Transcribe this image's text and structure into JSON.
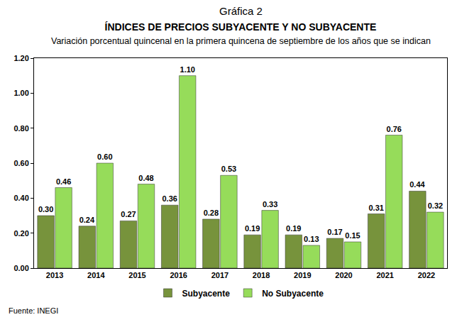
{
  "chart_data": {
    "type": "bar",
    "title": "ÍNDICES DE PRECIOS SUBYACENTE Y NO SUBYACENTE",
    "subtitle": "Variación porcentual quincenal en la primera quincena de septiembre de los años que se indican",
    "annotations": [
      "Gráfica 2",
      "Fuente: INEGI"
    ],
    "categories": [
      "2013",
      "2014",
      "2015",
      "2016",
      "2017",
      "2018",
      "2019",
      "2020",
      "2021",
      "2022"
    ],
    "series": [
      {
        "name": "Subyacente",
        "color": "#77933c",
        "values": [
          0.3,
          0.24,
          0.27,
          0.36,
          0.28,
          0.19,
          0.19,
          0.17,
          0.31,
          0.44
        ],
        "value_labels": [
          "0.30",
          "0.24",
          "0.27",
          "0.36",
          "0.28",
          "0.19",
          "0.19",
          "0.17",
          "0.31",
          "0.44"
        ]
      },
      {
        "name": "No Subyacente",
        "color": "#96dc5a",
        "values": [
          0.46,
          0.6,
          0.48,
          1.1,
          0.53,
          0.33,
          0.13,
          0.15,
          0.76,
          0.32
        ],
        "value_labels": [
          "0.46",
          "0.60",
          "0.48",
          "1.10",
          "0.53",
          "0.33",
          "0.13",
          "0.15",
          "0.76",
          "0.32"
        ]
      }
    ],
    "ylim": [
      0,
      1.2
    ],
    "yticks": [
      {
        "value": 0,
        "label": "0.00"
      },
      {
        "value": 0.2,
        "label": "0.20"
      },
      {
        "value": 0.4,
        "label": "0.40"
      },
      {
        "value": 0.6,
        "label": "0.60"
      },
      {
        "value": 0.8,
        "label": "0.80"
      },
      {
        "value": 1.0,
        "label": "1.00"
      },
      {
        "value": 1.2,
        "label": "1.20"
      }
    ],
    "grid": false,
    "legend": "bottom",
    "data_labels": true
  }
}
